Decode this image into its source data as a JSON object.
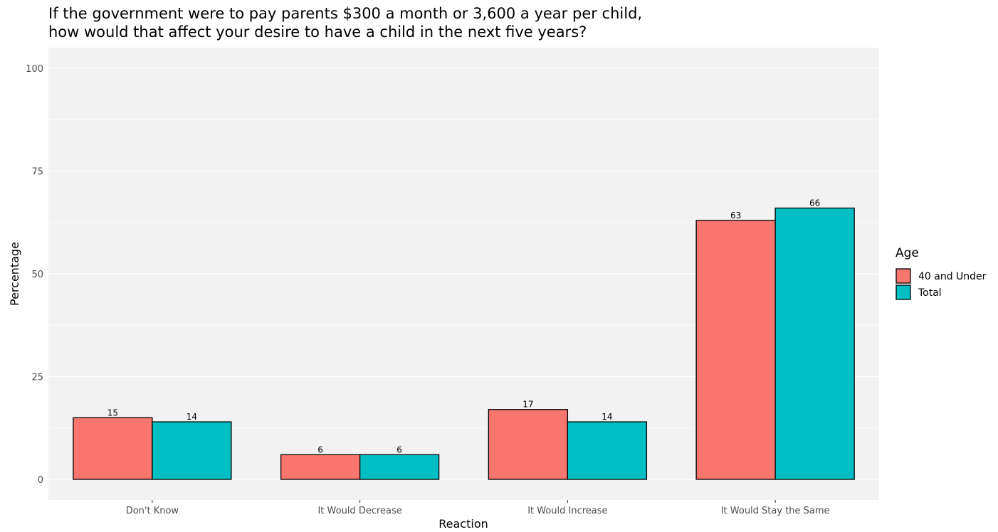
{
  "chart_data": {
    "type": "bar",
    "title": [
      "If the government were to pay parents $300 a month or 3,600 a year per child,",
      "how would that affect your desire to have a child in the next five years?"
    ],
    "xlabel": "Reaction",
    "ylabel": "Percentage",
    "ylim": [
      0,
      104
    ],
    "yticks": [
      0,
      25,
      50,
      75,
      100
    ],
    "grid": true,
    "categories": [
      "Don't Know",
      "It Would Decrease",
      "It Would Increase",
      "It Would Stay the Same"
    ],
    "series": [
      {
        "name": "40 and Under",
        "color": "#F8766D",
        "values": [
          15,
          6,
          17,
          63
        ]
      },
      {
        "name": "Total",
        "color": "#00BFC4",
        "values": [
          14,
          6,
          14,
          66
        ]
      }
    ],
    "legend": {
      "title": "Age",
      "position": "right"
    }
  }
}
